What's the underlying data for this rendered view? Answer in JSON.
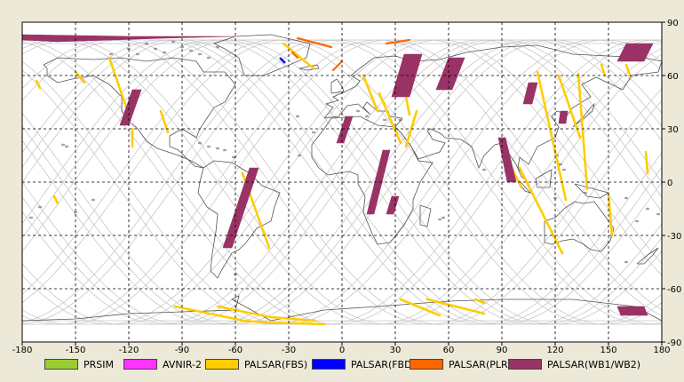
{
  "map": {
    "x_ticks": [
      "-180",
      "-150",
      "-120",
      "-90",
      "-60",
      "-30",
      "0",
      "30",
      "60",
      "90",
      "120",
      "150",
      "180"
    ],
    "y_ticks_right": [
      "90",
      "60",
      "30",
      "0",
      "-30",
      "-60",
      "-90"
    ],
    "grid": "dashed",
    "background_color": "#ffffff",
    "frame_color": "#000000"
  },
  "legend": [
    {
      "label": "PRSIM",
      "color": "#99cc33"
    },
    {
      "label": "AVNIR-2",
      "color": "#ff33ff"
    },
    {
      "label": "PALSAR(FBS)",
      "color": "#ffcc00"
    },
    {
      "label": "PALSAR(FBD)",
      "color": "#0000ff"
    },
    {
      "label": "PALSAR(PLR)",
      "color": "#ff6600"
    },
    {
      "label": "PALSAR(WB1/WB2)",
      "color": "#993366"
    }
  ],
  "swaths": {
    "wb": [
      [
        [
          -180,
          83
        ],
        [
          -120,
          82
        ],
        [
          -60,
          82
        ],
        [
          -100,
          81
        ],
        [
          -160,
          79
        ],
        [
          -180,
          80
        ]
      ],
      [
        [
          -118,
          52
        ],
        [
          -113,
          52
        ],
        [
          -120,
          32
        ],
        [
          -125,
          32
        ]
      ],
      [
        [
          -52,
          8
        ],
        [
          -47,
          8
        ],
        [
          -62,
          -37
        ],
        [
          -67,
          -37
        ]
      ],
      [
        [
          2,
          37
        ],
        [
          6,
          37
        ],
        [
          1,
          22
        ],
        [
          -3,
          22
        ]
      ],
      [
        [
          23,
          18
        ],
        [
          27,
          18
        ],
        [
          18,
          -18
        ],
        [
          14,
          -18
        ]
      ],
      [
        [
          35,
          72
        ],
        [
          45,
          72
        ],
        [
          38,
          48
        ],
        [
          28,
          48
        ]
      ],
      [
        [
          60,
          70
        ],
        [
          69,
          70
        ],
        [
          62,
          52
        ],
        [
          53,
          52
        ]
      ],
      [
        [
          28,
          -8
        ],
        [
          32,
          -8
        ],
        [
          29,
          -18
        ],
        [
          25,
          -18
        ]
      ],
      [
        [
          88,
          25
        ],
        [
          92,
          25
        ],
        [
          98,
          0
        ],
        [
          93,
          0
        ]
      ],
      [
        [
          105,
          56
        ],
        [
          110,
          56
        ],
        [
          107,
          44
        ],
        [
          102,
          44
        ]
      ],
      [
        [
          123,
          40
        ],
        [
          127,
          40
        ],
        [
          126,
          33
        ],
        [
          122,
          33
        ]
      ],
      [
        [
          160,
          78
        ],
        [
          175,
          78
        ],
        [
          170,
          68
        ],
        [
          155,
          68
        ]
      ],
      [
        [
          155,
          -70
        ],
        [
          170,
          -70
        ],
        [
          172,
          -75
        ],
        [
          157,
          -75
        ]
      ]
    ],
    "fbs": [
      [
        [
          -131,
          70
        ],
        [
          -120,
          38
        ]
      ],
      [
        [
          -56,
          5
        ],
        [
          -41,
          -37
        ]
      ],
      [
        [
          -57,
          -78
        ],
        [
          -42,
          -79
        ],
        [
          -10,
          -80
        ]
      ],
      [
        [
          -70,
          -70
        ],
        [
          -40,
          -76
        ],
        [
          -15,
          -78
        ]
      ],
      [
        [
          -118,
          30
        ],
        [
          -118,
          20
        ]
      ],
      [
        [
          -102,
          40
        ],
        [
          -98,
          28
        ]
      ],
      [
        [
          -94,
          -70
        ],
        [
          -55,
          -78
        ]
      ],
      [
        [
          -33,
          78
        ],
        [
          -16,
          64
        ]
      ],
      [
        [
          12,
          60
        ],
        [
          20,
          40
        ]
      ],
      [
        [
          21,
          50
        ],
        [
          33,
          22
        ]
      ],
      [
        [
          33,
          63
        ],
        [
          38,
          38
        ]
      ],
      [
        [
          42,
          40
        ],
        [
          36,
          20
        ]
      ],
      [
        [
          33,
          -66
        ],
        [
          55,
          -75
        ]
      ],
      [
        [
          48,
          -66
        ],
        [
          80,
          -74
        ]
      ],
      [
        [
          75,
          -66
        ],
        [
          80,
          -68
        ]
      ],
      [
        [
          91,
          17
        ],
        [
          101,
          -3
        ]
      ],
      [
        [
          100,
          8
        ],
        [
          124,
          -40
        ]
      ],
      [
        [
          110,
          62
        ],
        [
          126,
          -10
        ]
      ],
      [
        [
          122,
          60
        ],
        [
          134,
          25
        ]
      ],
      [
        [
          133,
          61
        ],
        [
          138,
          -4
        ]
      ],
      [
        [
          146,
          66
        ],
        [
          148,
          60
        ]
      ],
      [
        [
          160,
          66
        ],
        [
          162,
          60
        ]
      ],
      [
        [
          150,
          -7
        ],
        [
          152,
          -30
        ]
      ],
      [
        [
          -150,
          62
        ],
        [
          -145,
          56
        ]
      ],
      [
        [
          -172,
          57
        ],
        [
          -170,
          53
        ]
      ],
      [
        [
          -162,
          -8
        ],
        [
          -160,
          -12
        ]
      ],
      [
        [
          171,
          17
        ],
        [
          172,
          5
        ]
      ]
    ],
    "fbd": [
      [
        [
          -35,
          70
        ],
        [
          -32,
          67
        ]
      ]
    ],
    "plr": [
      [
        [
          -25,
          81
        ],
        [
          -6,
          76
        ]
      ],
      [
        [
          25,
          78
        ],
        [
          38,
          80
        ]
      ],
      [
        [
          0,
          68
        ],
        [
          -5,
          63
        ]
      ],
      [
        [
          -28,
          73
        ],
        [
          -25,
          70
        ]
      ]
    ]
  },
  "land": [
    [
      [
        -168,
        66
      ],
      [
        -160,
        70
      ],
      [
        -140,
        69
      ],
      [
        -125,
        70
      ],
      [
        -110,
        68
      ],
      [
        -95,
        70
      ],
      [
        -82,
        68
      ],
      [
        -78,
        62
      ],
      [
        -66,
        62
      ],
      [
        -60,
        55
      ],
      [
        -66,
        45
      ],
      [
        -72,
        42
      ],
      [
        -76,
        36
      ],
      [
        -80,
        30
      ],
      [
        -82,
        25
      ],
      [
        -90,
        30
      ],
      [
        -97,
        26
      ],
      [
        -97,
        20
      ],
      [
        -92,
        18
      ],
      [
        -88,
        14
      ],
      [
        -83,
        9
      ],
      [
        -78,
        8
      ],
      [
        -85,
        12
      ],
      [
        -92,
        15
      ],
      [
        -104,
        19
      ],
      [
        -110,
        23
      ],
      [
        -115,
        30
      ],
      [
        -120,
        34
      ],
      [
        -124,
        40
      ],
      [
        -124,
        48
      ],
      [
        -131,
        55
      ],
      [
        -140,
        60
      ],
      [
        -152,
        58
      ],
      [
        -160,
        56
      ],
      [
        -166,
        60
      ],
      [
        -166,
        64
      ],
      [
        -168,
        66
      ]
    ],
    [
      [
        -78,
        8
      ],
      [
        -72,
        12
      ],
      [
        -62,
        11
      ],
      [
        -52,
        5
      ],
      [
        -45,
        -2
      ],
      [
        -35,
        -6
      ],
      [
        -38,
        -14
      ],
      [
        -40,
        -22
      ],
      [
        -48,
        -26
      ],
      [
        -54,
        -34
      ],
      [
        -58,
        -38
      ],
      [
        -62,
        -40
      ],
      [
        -65,
        -45
      ],
      [
        -68,
        -50
      ],
      [
        -70,
        -54
      ],
      [
        -74,
        -50
      ],
      [
        -73,
        -40
      ],
      [
        -71,
        -28
      ],
      [
        -70,
        -18
      ],
      [
        -76,
        -14
      ],
      [
        -81,
        -6
      ],
      [
        -80,
        0
      ],
      [
        -78,
        8
      ]
    ],
    [
      [
        -55,
        60
      ],
      [
        -44,
        60
      ],
      [
        -20,
        70
      ],
      [
        -18,
        78
      ],
      [
        -40,
        83
      ],
      [
        -60,
        82
      ],
      [
        -72,
        78
      ],
      [
        -66,
        75
      ],
      [
        -58,
        70
      ],
      [
        -55,
        60
      ]
    ],
    [
      [
        -10,
        36
      ],
      [
        -5,
        42
      ],
      [
        -9,
        44
      ],
      [
        -2,
        46
      ],
      [
        -5,
        48
      ],
      [
        2,
        51
      ],
      [
        8,
        54
      ],
      [
        10,
        57
      ],
      [
        5,
        60
      ],
      [
        10,
        64
      ],
      [
        18,
        70
      ],
      [
        30,
        71
      ],
      [
        40,
        68
      ],
      [
        55,
        69
      ],
      [
        70,
        73
      ],
      [
        90,
        76
      ],
      [
        110,
        77
      ],
      [
        130,
        72
      ],
      [
        150,
        71
      ],
      [
        170,
        70
      ],
      [
        180,
        68
      ],
      [
        178,
        62
      ],
      [
        163,
        60
      ],
      [
        158,
        52
      ],
      [
        143,
        59
      ],
      [
        135,
        55
      ],
      [
        140,
        48
      ],
      [
        130,
        42
      ],
      [
        127,
        38
      ],
      [
        121,
        40
      ],
      [
        118,
        37
      ],
      [
        122,
        31
      ],
      [
        120,
        25
      ],
      [
        110,
        20
      ],
      [
        105,
        10
      ],
      [
        100,
        14
      ],
      [
        99,
        8
      ],
      [
        104,
        1
      ],
      [
        101,
        3
      ],
      [
        98,
        10
      ],
      [
        94,
        16
      ],
      [
        90,
        22
      ],
      [
        86,
        21
      ],
      [
        80,
        15
      ],
      [
        77,
        8
      ],
      [
        73,
        20
      ],
      [
        67,
        24
      ],
      [
        58,
        25
      ],
      [
        56,
        27
      ],
      [
        50,
        30
      ],
      [
        48,
        29
      ],
      [
        51,
        24
      ],
      [
        58,
        22
      ],
      [
        55,
        17
      ],
      [
        43,
        13
      ],
      [
        39,
        20
      ],
      [
        33,
        28
      ],
      [
        30,
        31
      ],
      [
        34,
        36
      ],
      [
        27,
        37
      ],
      [
        26,
        40
      ],
      [
        20,
        40
      ],
      [
        14,
        45
      ],
      [
        12,
        42
      ],
      [
        16,
        38
      ],
      [
        9,
        44
      ],
      [
        3,
        43
      ],
      [
        -2,
        37
      ],
      [
        -10,
        36
      ]
    ],
    [
      [
        -17,
        21
      ],
      [
        -10,
        30
      ],
      [
        -6,
        36
      ],
      [
        10,
        37
      ],
      [
        20,
        32
      ],
      [
        30,
        31
      ],
      [
        33,
        28
      ],
      [
        39,
        20
      ],
      [
        43,
        12
      ],
      [
        51,
        11
      ],
      [
        44,
        0
      ],
      [
        40,
        -10
      ],
      [
        40,
        -15
      ],
      [
        35,
        -24
      ],
      [
        32,
        -28
      ],
      [
        27,
        -34
      ],
      [
        20,
        -35
      ],
      [
        17,
        -29
      ],
      [
        12,
        -17
      ],
      [
        13,
        -8
      ],
      [
        9,
        -1
      ],
      [
        9,
        4
      ],
      [
        4,
        6
      ],
      [
        -8,
        4
      ],
      [
        -13,
        8
      ],
      [
        -17,
        14
      ],
      [
        -17,
        21
      ]
    ],
    [
      [
        114,
        -22
      ],
      [
        114,
        -34
      ],
      [
        118,
        -35
      ],
      [
        124,
        -33
      ],
      [
        130,
        -32
      ],
      [
        136,
        -35
      ],
      [
        140,
        -38
      ],
      [
        146,
        -39
      ],
      [
        151,
        -33
      ],
      [
        153,
        -26
      ],
      [
        145,
        -15
      ],
      [
        142,
        -11
      ],
      [
        136,
        -12
      ],
      [
        131,
        -11
      ],
      [
        125,
        -15
      ],
      [
        120,
        -20
      ],
      [
        114,
        -22
      ]
    ],
    [
      [
        -180,
        -78
      ],
      [
        -150,
        -77
      ],
      [
        -120,
        -74
      ],
      [
        -90,
        -73
      ],
      [
        -60,
        -72
      ],
      [
        -58,
        -64
      ],
      [
        -62,
        -66
      ],
      [
        -40,
        -78
      ],
      [
        -10,
        -72
      ],
      [
        20,
        -70
      ],
      [
        60,
        -67
      ],
      [
        90,
        -66
      ],
      [
        130,
        -66
      ],
      [
        165,
        -70
      ],
      [
        180,
        -78
      ]
    ],
    [
      [
        44,
        -13
      ],
      [
        50,
        -15
      ],
      [
        48,
        -25
      ],
      [
        44,
        -24
      ],
      [
        44,
        -13
      ]
    ],
    [
      [
        130,
        31
      ],
      [
        135,
        35
      ],
      [
        141,
        40
      ],
      [
        142,
        44
      ],
      [
        140,
        42
      ],
      [
        136,
        37
      ],
      [
        130,
        31
      ]
    ],
    [
      [
        -6,
        50
      ],
      [
        1,
        51
      ],
      [
        0,
        54
      ],
      [
        -3,
        58
      ],
      [
        -6,
        56
      ],
      [
        -6,
        50
      ]
    ],
    [
      [
        95,
        6
      ],
      [
        106,
        -6
      ],
      [
        103,
        -5
      ],
      [
        95,
        6
      ]
    ],
    [
      [
        109,
        2
      ],
      [
        118,
        7
      ],
      [
        117,
        -3
      ],
      [
        110,
        -3
      ],
      [
        109,
        2
      ]
    ],
    [
      [
        131,
        -1
      ],
      [
        150,
        -6
      ],
      [
        145,
        -9
      ],
      [
        138,
        -8
      ],
      [
        131,
        -1
      ]
    ],
    [
      [
        -24,
        64
      ],
      [
        -14,
        66
      ],
      [
        -13,
        64
      ],
      [
        -20,
        63
      ],
      [
        -24,
        64
      ]
    ],
    [
      [
        166,
        -46
      ],
      [
        172,
        -41
      ],
      [
        178,
        -37
      ],
      [
        175,
        -41
      ],
      [
        170,
        -46
      ],
      [
        166,
        -46
      ]
    ]
  ],
  "islands": [
    [
      -120,
      75
    ],
    [
      -100,
      73
    ],
    [
      -90,
      76
    ],
    [
      -80,
      72
    ],
    [
      -110,
      78
    ],
    [
      -95,
      79
    ],
    [
      -75,
      70
    ],
    [
      -130,
      72
    ],
    [
      -85,
      74
    ],
    [
      -105,
      75
    ],
    [
      -115,
      72
    ],
    [
      -70,
      76
    ],
    [
      -155,
      20
    ],
    [
      -157,
      21
    ],
    [
      -80,
      22
    ],
    [
      -75,
      20
    ],
    [
      -70,
      19
    ],
    [
      -66,
      18
    ],
    [
      -61,
      14
    ],
    [
      -60,
      -52
    ],
    [
      80,
      7
    ],
    [
      121,
      15
    ],
    [
      123,
      10
    ],
    [
      125,
      7
    ],
    [
      137,
      -6
    ],
    [
      120,
      -9
    ],
    [
      160,
      -9
    ],
    [
      178,
      -18
    ],
    [
      166,
      -22
    ],
    [
      55,
      -21
    ],
    [
      57,
      -20
    ],
    [
      9,
      40
    ],
    [
      14,
      37
    ],
    [
      33,
      35
    ],
    [
      24,
      35
    ],
    [
      -25,
      37
    ],
    [
      -16,
      28
    ],
    [
      -24,
      15
    ],
    [
      -150,
      -17
    ],
    [
      -170,
      -14
    ],
    [
      -140,
      -10
    ],
    [
      172,
      -15
    ],
    [
      160,
      -45
    ],
    [
      -175,
      -20
    ]
  ]
}
